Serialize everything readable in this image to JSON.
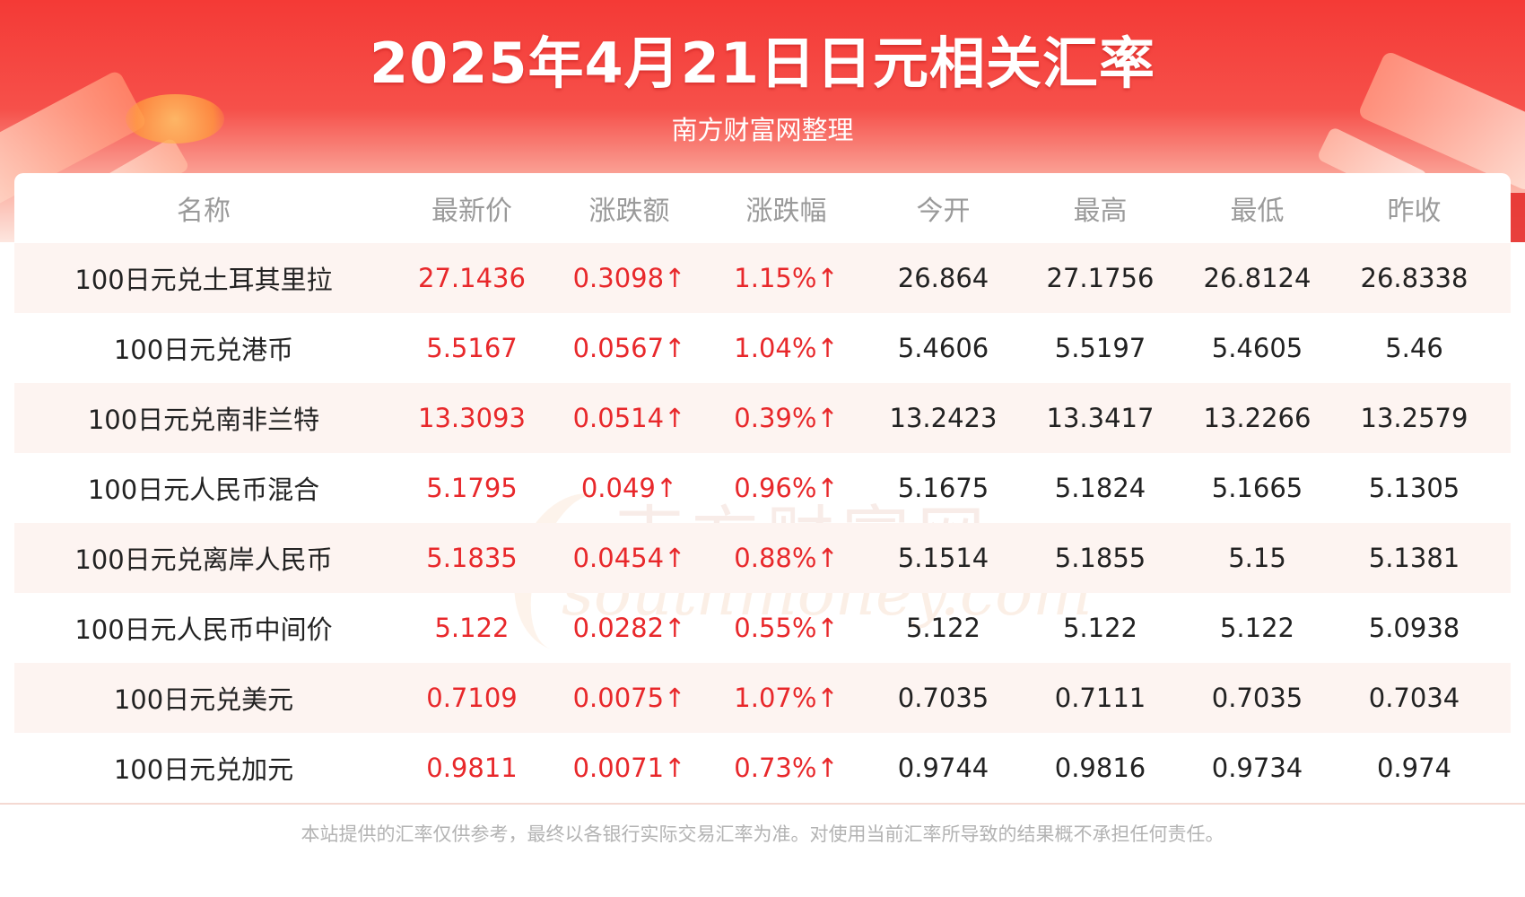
{
  "header": {
    "title": "2025年4月21日日元相关汇率",
    "subtitle": "南方财富网整理"
  },
  "table": {
    "columns": [
      "名称",
      "最新价",
      "涨跌额",
      "涨跌幅",
      "今开",
      "最高",
      "最低",
      "昨收"
    ],
    "rows": [
      {
        "name": "100日元兑土耳其里拉",
        "latest": "27.1436",
        "change": "0.3098↑",
        "change_pct": "1.15%↑",
        "open": "26.864",
        "high": "27.1756",
        "low": "26.8124",
        "prev_close": "26.8338"
      },
      {
        "name": "100日元兑港币",
        "latest": "5.5167",
        "change": "0.0567↑",
        "change_pct": "1.04%↑",
        "open": "5.4606",
        "high": "5.5197",
        "low": "5.4605",
        "prev_close": "5.46"
      },
      {
        "name": "100日元兑南非兰特",
        "latest": "13.3093",
        "change": "0.0514↑",
        "change_pct": "0.39%↑",
        "open": "13.2423",
        "high": "13.3417",
        "low": "13.2266",
        "prev_close": "13.2579"
      },
      {
        "name": "100日元人民币混合",
        "latest": "5.1795",
        "change": "0.049↑",
        "change_pct": "0.96%↑",
        "open": "5.1675",
        "high": "5.1824",
        "low": "5.1665",
        "prev_close": "5.1305"
      },
      {
        "name": "100日元兑离岸人民币",
        "latest": "5.1835",
        "change": "0.0454↑",
        "change_pct": "0.88%↑",
        "open": "5.1514",
        "high": "5.1855",
        "low": "5.15",
        "prev_close": "5.1381"
      },
      {
        "name": "100日元人民币中间价",
        "latest": "5.122",
        "change": "0.0282↑",
        "change_pct": "0.55%↑",
        "open": "5.122",
        "high": "5.122",
        "low": "5.122",
        "prev_close": "5.0938"
      },
      {
        "name": "100日元兑美元",
        "latest": "0.7109",
        "change": "0.0075↑",
        "change_pct": "1.07%↑",
        "open": "0.7035",
        "high": "0.7111",
        "low": "0.7035",
        "prev_close": "0.7034"
      },
      {
        "name": "100日元兑加元",
        "latest": "0.9811",
        "change": "0.0071↑",
        "change_pct": "0.73%↑",
        "open": "0.9744",
        "high": "0.9816",
        "low": "0.9734",
        "prev_close": "0.974"
      }
    ]
  },
  "watermark": {
    "cn": "南方财富网",
    "en": "southmoney.com"
  },
  "footer": {
    "disclaimer": "本站提供的汇率仅供参考，最终以各银行实际交易汇率为准。对使用当前汇率所导致的结果概不承担任何责任。"
  },
  "colors": {
    "banner": "#f43a36",
    "up": "#e8282b",
    "header_text": "#9a9a9a",
    "row_alt": "#fdf4f1"
  }
}
